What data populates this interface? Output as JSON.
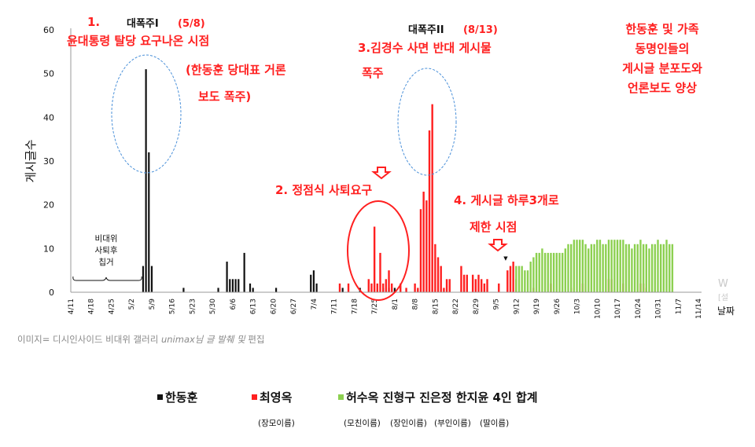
{
  "chart_data": {
    "type": "bar",
    "ylabel": "게시글수",
    "xlabel": "날짜",
    "ylim": [
      0,
      60
    ],
    "y_ticks": [
      "0",
      "10",
      "20",
      "30",
      "40",
      "50",
      "60"
    ],
    "x_tick_labels": [
      "4/11",
      "4/18",
      "4/25",
      "5/2",
      "5/9",
      "5/16",
      "5/23",
      "5/30",
      "6/6",
      "6/13",
      "6/20",
      "6/27",
      "7/4",
      "7/11",
      "7/18",
      "7/25",
      "8/1",
      "8/8",
      "8/15",
      "8/22",
      "8/29",
      "9/5",
      "9/12",
      "9/19",
      "9/26",
      "10/3",
      "10/10",
      "10/17",
      "10/24",
      "10/31",
      "11/7",
      "11/14"
    ],
    "series": [
      {
        "name": "한동훈",
        "color": "#111111",
        "points": [
          {
            "date": "5/6",
            "value": 6
          },
          {
            "date": "5/7",
            "value": 51
          },
          {
            "date": "5/8",
            "value": 32
          },
          {
            "date": "5/9",
            "value": 6
          },
          {
            "date": "5/20",
            "value": 1
          },
          {
            "date": "6/1",
            "value": 1
          },
          {
            "date": "6/4",
            "value": 7
          },
          {
            "date": "6/5",
            "value": 3
          },
          {
            "date": "6/6",
            "value": 3
          },
          {
            "date": "6/7",
            "value": 3
          },
          {
            "date": "6/8",
            "value": 3
          },
          {
            "date": "6/10",
            "value": 9
          },
          {
            "date": "6/12",
            "value": 2
          },
          {
            "date": "6/13",
            "value": 1
          },
          {
            "date": "6/21",
            "value": 1
          },
          {
            "date": "7/3",
            "value": 4
          },
          {
            "date": "7/4",
            "value": 5
          },
          {
            "date": "7/5",
            "value": 2
          },
          {
            "date": "7/14",
            "value": 1
          },
          {
            "date": "7/20",
            "value": 1
          },
          {
            "date": "7/28",
            "value": 1
          },
          {
            "date": "7/30",
            "value": 1
          },
          {
            "date": "8/1",
            "value": 1
          }
        ]
      },
      {
        "name": "최영옥",
        "color": "#ff2020",
        "points": [
          {
            "date": "7/13",
            "value": 2
          },
          {
            "date": "7/16",
            "value": 2
          },
          {
            "date": "7/23",
            "value": 3
          },
          {
            "date": "7/24",
            "value": 2
          },
          {
            "date": "7/25",
            "value": 15
          },
          {
            "date": "7/26",
            "value": 2
          },
          {
            "date": "7/27",
            "value": 9
          },
          {
            "date": "7/28",
            "value": 2
          },
          {
            "date": "7/29",
            "value": 3
          },
          {
            "date": "7/30",
            "value": 5
          },
          {
            "date": "7/31",
            "value": 2
          },
          {
            "date": "8/3",
            "value": 2
          },
          {
            "date": "8/5",
            "value": 1
          },
          {
            "date": "8/8",
            "value": 2
          },
          {
            "date": "8/9",
            "value": 1
          },
          {
            "date": "8/10",
            "value": 19
          },
          {
            "date": "8/11",
            "value": 23
          },
          {
            "date": "8/12",
            "value": 21
          },
          {
            "date": "8/13",
            "value": 37
          },
          {
            "date": "8/14",
            "value": 43
          },
          {
            "date": "8/15",
            "value": 11
          },
          {
            "date": "8/16",
            "value": 8
          },
          {
            "date": "8/17",
            "value": 6
          },
          {
            "date": "8/18",
            "value": 1
          },
          {
            "date": "8/19",
            "value": 3
          },
          {
            "date": "8/20",
            "value": 3
          },
          {
            "date": "8/24",
            "value": 6
          },
          {
            "date": "8/25",
            "value": 4
          },
          {
            "date": "8/26",
            "value": 4
          },
          {
            "date": "8/28",
            "value": 4
          },
          {
            "date": "8/29",
            "value": 3
          },
          {
            "date": "8/30",
            "value": 4
          },
          {
            "date": "8/31",
            "value": 3
          },
          {
            "date": "9/1",
            "value": 2
          },
          {
            "date": "9/2",
            "value": 3
          },
          {
            "date": "9/6",
            "value": 2
          },
          {
            "date": "9/9",
            "value": 5
          },
          {
            "date": "9/10",
            "value": 6
          },
          {
            "date": "9/11",
            "value": 7
          },
          {
            "date": "9/12",
            "value": 3
          },
          {
            "date": "9/18",
            "value": 1
          },
          {
            "date": "9/24",
            "value": 2
          },
          {
            "date": "10/1",
            "value": 1
          },
          {
            "date": "10/5",
            "value": 2
          },
          {
            "date": "10/14",
            "value": 3
          },
          {
            "date": "10/15",
            "value": 3
          },
          {
            "date": "10/19",
            "value": 2
          },
          {
            "date": "10/25",
            "value": 2
          },
          {
            "date": "10/26",
            "value": 2
          },
          {
            "date": "10/27",
            "value": 1
          }
        ]
      },
      {
        "name": "허수옥 진형구 진은정 한지윤 4인 합계",
        "color": "#8cd050",
        "points": [
          {
            "date": "9/12",
            "value": 6
          },
          {
            "date": "9/13",
            "value": 6
          },
          {
            "date": "9/14",
            "value": 6
          },
          {
            "date": "9/15",
            "value": 5
          },
          {
            "date": "9/16",
            "value": 5
          },
          {
            "date": "9/17",
            "value": 7
          },
          {
            "date": "9/18",
            "value": 8
          },
          {
            "date": "9/19",
            "value": 9
          },
          {
            "date": "9/20",
            "value": 9
          },
          {
            "date": "9/21",
            "value": 10
          },
          {
            "date": "9/22",
            "value": 9
          },
          {
            "date": "9/23",
            "value": 9
          },
          {
            "date": "9/24",
            "value": 9
          },
          {
            "date": "9/25",
            "value": 9
          },
          {
            "date": "9/26",
            "value": 9
          },
          {
            "date": "9/27",
            "value": 9
          },
          {
            "date": "9/28",
            "value": 9
          },
          {
            "date": "9/29",
            "value": 10
          },
          {
            "date": "9/30",
            "value": 11
          },
          {
            "date": "10/1",
            "value": 11
          },
          {
            "date": "10/2",
            "value": 12
          },
          {
            "date": "10/3",
            "value": 12
          },
          {
            "date": "10/4",
            "value": 12
          },
          {
            "date": "10/5",
            "value": 12
          },
          {
            "date": "10/6",
            "value": 11
          },
          {
            "date": "10/7",
            "value": 10
          },
          {
            "date": "10/8",
            "value": 11
          },
          {
            "date": "10/9",
            "value": 11
          },
          {
            "date": "10/10",
            "value": 12
          },
          {
            "date": "10/11",
            "value": 12
          },
          {
            "date": "10/12",
            "value": 11
          },
          {
            "date": "10/13",
            "value": 11
          },
          {
            "date": "10/14",
            "value": 12
          },
          {
            "date": "10/15",
            "value": 12
          },
          {
            "date": "10/16",
            "value": 12
          },
          {
            "date": "10/17",
            "value": 12
          },
          {
            "date": "10/18",
            "value": 12
          },
          {
            "date": "10/19",
            "value": 12
          },
          {
            "date": "10/20",
            "value": 11
          },
          {
            "date": "10/21",
            "value": 11
          },
          {
            "date": "10/22",
            "value": 10
          },
          {
            "date": "10/23",
            "value": 11
          },
          {
            "date": "10/24",
            "value": 11
          },
          {
            "date": "10/25",
            "value": 12
          },
          {
            "date": "10/26",
            "value": 11
          },
          {
            "date": "10/27",
            "value": 11
          },
          {
            "date": "10/28",
            "value": 10
          },
          {
            "date": "10/29",
            "value": 11
          },
          {
            "date": "10/30",
            "value": 11
          },
          {
            "date": "10/31",
            "value": 12
          },
          {
            "date": "11/1",
            "value": 11
          },
          {
            "date": "11/2",
            "value": 11
          },
          {
            "date": "11/3",
            "value": 12
          },
          {
            "date": "11/4",
            "value": 11
          },
          {
            "date": "11/5",
            "value": 11
          }
        ]
      }
    ],
    "annotations": {
      "title_left": "대폭주I",
      "title_left_date": "(5/8)",
      "title_mid": "대폭주II",
      "title_mid_date": "(8/13)",
      "note1_lines": [
        "1.",
        "윤대통령 탈당 요구나온 시점"
      ],
      "note1b_lines": [
        "(한동훈 당대표 거론",
        "보도 폭주)"
      ],
      "note2": "2. 정점식 사퇴요구",
      "note3_lines": [
        "3.김경수 사면 반대 게시물",
        "폭주"
      ],
      "note4_lines": [
        "4. 게시글 하루3개로",
        "제한 시점"
      ],
      "note_right_lines": [
        "한동훈 및 가족",
        "동명인들의",
        "게시글 분포도와",
        "언론보도 양상"
      ],
      "bracket_label_lines": [
        "비대위",
        "사퇴후",
        "칩거"
      ],
      "edge_text_lines": [
        "W",
        "[설"
      ]
    }
  },
  "caption": {
    "prefix": "이미지= 디시인사이드 비대위 갤러리 ",
    "italic": "unimax님 글 발췌 및",
    "suffix": " 편집"
  },
  "legend": {
    "items": [
      {
        "label": "한동훈",
        "color": "#111111"
      },
      {
        "label": "최영옥",
        "color": "#ff2020"
      },
      {
        "label": "허수옥 진형구 진은정 한지윤 4인 합계",
        "color": "#8cd050"
      }
    ],
    "sub_labels": [
      "(장모이름)",
      "(모친이름)",
      "(장인이름)",
      "(부인이름)",
      "(딸이름)"
    ]
  }
}
